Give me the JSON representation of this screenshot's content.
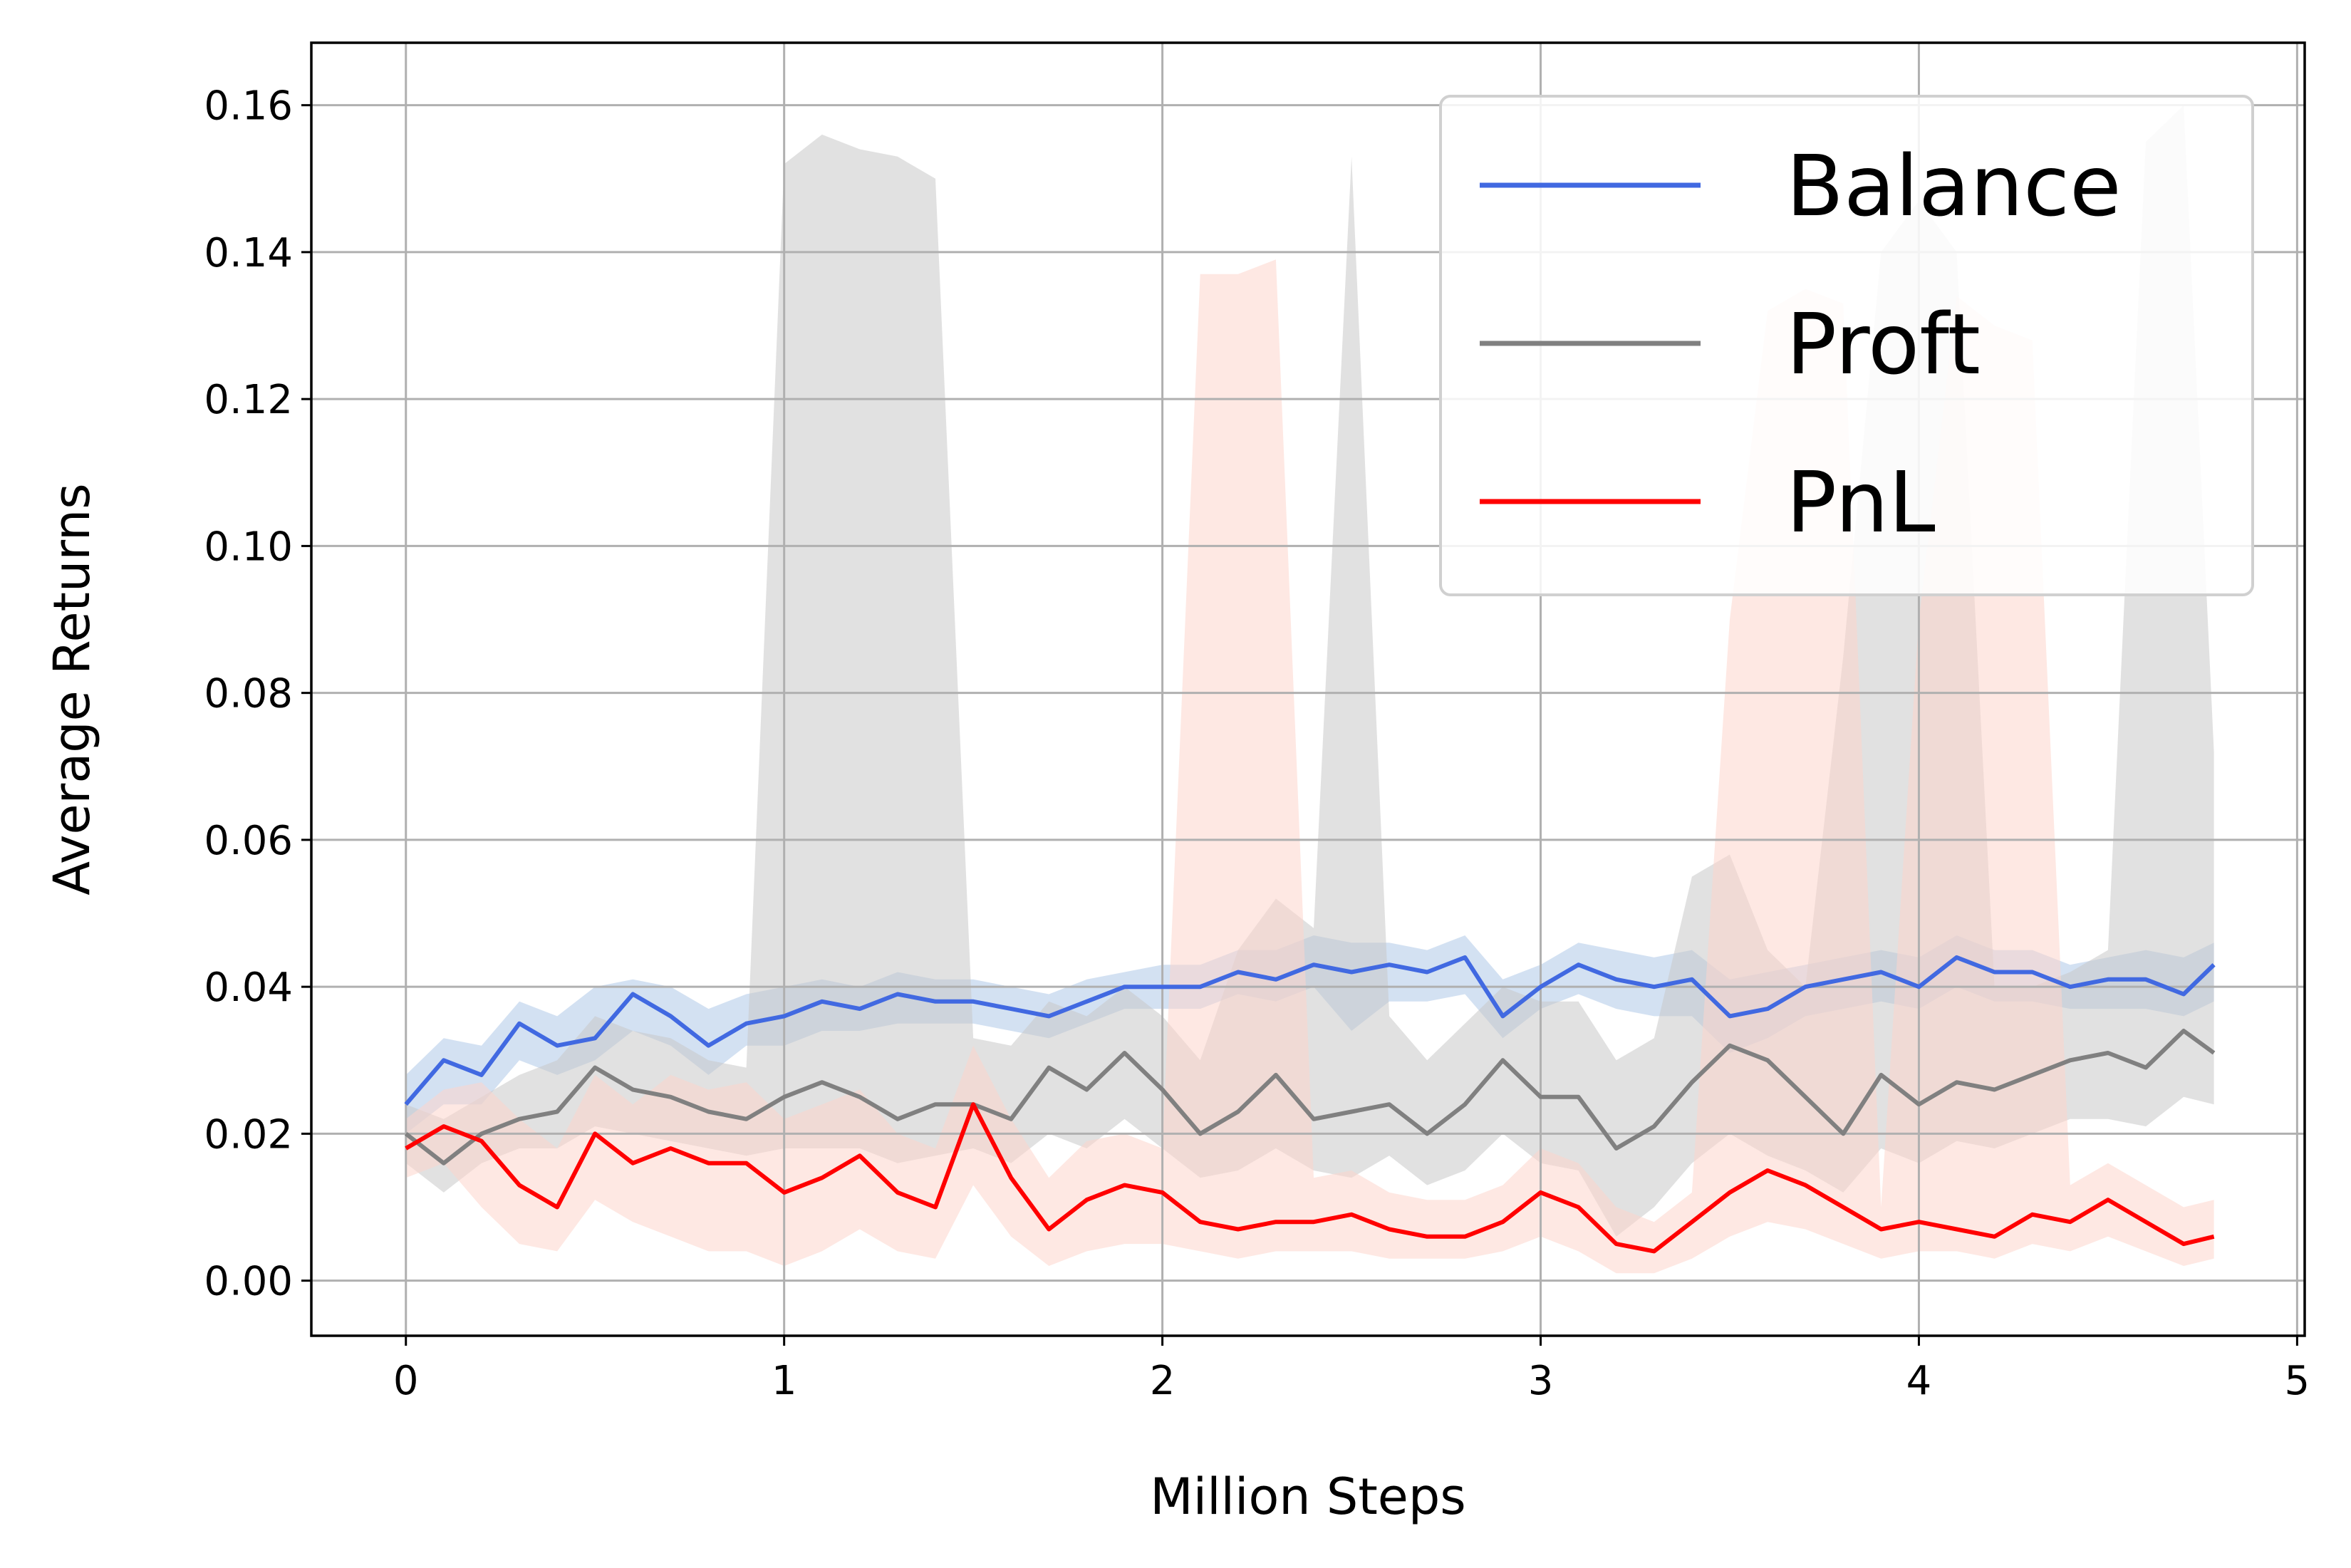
{
  "chart_data": {
    "type": "line",
    "xlabel": "Million Steps",
    "ylabel": "Average Returns",
    "xlim": [
      -0.25,
      5.02
    ],
    "ylim": [
      -0.0075,
      0.1685
    ],
    "xticks": [
      0,
      1,
      2,
      3,
      4,
      5
    ],
    "xtick_labels": [
      "0",
      "1",
      "2",
      "3",
      "4",
      "5"
    ],
    "yticks": [
      0.0,
      0.02,
      0.04,
      0.06,
      0.08,
      0.1,
      0.12,
      0.14,
      0.16
    ],
    "ytick_labels": [
      "0.00",
      "0.02",
      "0.04",
      "0.06",
      "0.08",
      "0.10",
      "0.12",
      "0.14",
      "0.16"
    ],
    "grid": true,
    "legend_position": "top-right",
    "series": [
      {
        "name": "Balance",
        "color": "#4169e1",
        "band_color": "#aec9e8",
        "x": [
          0.0,
          0.1,
          0.2,
          0.3,
          0.4,
          0.5,
          0.6,
          0.7,
          0.8,
          0.9,
          1.0,
          1.1,
          1.2,
          1.3,
          1.4,
          1.5,
          1.6,
          1.7,
          1.8,
          1.9,
          2.0,
          2.1,
          2.2,
          2.3,
          2.4,
          2.5,
          2.6,
          2.7,
          2.8,
          2.9,
          3.0,
          3.1,
          3.2,
          3.3,
          3.4,
          3.5,
          3.6,
          3.7,
          3.8,
          3.9,
          4.0,
          4.1,
          4.2,
          4.3,
          4.4,
          4.5,
          4.6,
          4.7,
          4.78
        ],
        "y": [
          0.024,
          0.03,
          0.028,
          0.035,
          0.032,
          0.033,
          0.039,
          0.036,
          0.032,
          0.035,
          0.036,
          0.038,
          0.037,
          0.039,
          0.038,
          0.038,
          0.037,
          0.036,
          0.038,
          0.04,
          0.04,
          0.04,
          0.042,
          0.041,
          0.043,
          0.042,
          0.043,
          0.042,
          0.044,
          0.036,
          0.04,
          0.043,
          0.041,
          0.04,
          0.041,
          0.036,
          0.037,
          0.04,
          0.041,
          0.042,
          0.04,
          0.044,
          0.042,
          0.042,
          0.04,
          0.041,
          0.041,
          0.039,
          0.043
        ],
        "lower": [
          0.02,
          0.024,
          0.024,
          0.03,
          0.028,
          0.03,
          0.034,
          0.032,
          0.028,
          0.032,
          0.032,
          0.034,
          0.034,
          0.035,
          0.035,
          0.035,
          0.034,
          0.033,
          0.035,
          0.037,
          0.037,
          0.037,
          0.039,
          0.038,
          0.04,
          0.034,
          0.038,
          0.038,
          0.039,
          0.033,
          0.037,
          0.039,
          0.037,
          0.036,
          0.036,
          0.031,
          0.033,
          0.036,
          0.037,
          0.038,
          0.037,
          0.04,
          0.038,
          0.038,
          0.037,
          0.037,
          0.037,
          0.036,
          0.038
        ],
        "upper": [
          0.028,
          0.033,
          0.032,
          0.038,
          0.036,
          0.04,
          0.041,
          0.04,
          0.037,
          0.039,
          0.04,
          0.041,
          0.04,
          0.042,
          0.041,
          0.041,
          0.04,
          0.039,
          0.041,
          0.042,
          0.043,
          0.043,
          0.045,
          0.045,
          0.047,
          0.046,
          0.046,
          0.045,
          0.047,
          0.041,
          0.043,
          0.046,
          0.045,
          0.044,
          0.045,
          0.041,
          0.042,
          0.043,
          0.044,
          0.045,
          0.044,
          0.047,
          0.045,
          0.045,
          0.043,
          0.044,
          0.045,
          0.044,
          0.046
        ]
      },
      {
        "name": "Proft",
        "color": "#808080",
        "band_color": "#c8c8c8",
        "x": [
          0.0,
          0.1,
          0.2,
          0.3,
          0.4,
          0.5,
          0.6,
          0.7,
          0.8,
          0.9,
          1.0,
          1.1,
          1.2,
          1.3,
          1.4,
          1.5,
          1.6,
          1.7,
          1.8,
          1.9,
          2.0,
          2.1,
          2.2,
          2.3,
          2.4,
          2.5,
          2.6,
          2.7,
          2.8,
          2.9,
          3.0,
          3.1,
          3.2,
          3.3,
          3.4,
          3.5,
          3.6,
          3.7,
          3.8,
          3.9,
          4.0,
          4.1,
          4.2,
          4.3,
          4.4,
          4.5,
          4.6,
          4.7,
          4.78
        ],
        "y": [
          0.02,
          0.016,
          0.02,
          0.022,
          0.023,
          0.029,
          0.026,
          0.025,
          0.023,
          0.022,
          0.025,
          0.027,
          0.025,
          0.022,
          0.024,
          0.024,
          0.022,
          0.029,
          0.026,
          0.031,
          0.026,
          0.02,
          0.023,
          0.028,
          0.022,
          0.023,
          0.024,
          0.02,
          0.024,
          0.03,
          0.025,
          0.025,
          0.018,
          0.021,
          0.027,
          0.032,
          0.03,
          0.025,
          0.02,
          0.028,
          0.024,
          0.027,
          0.026,
          0.028,
          0.03,
          0.031,
          0.029,
          0.034,
          0.031
        ],
        "lower": [
          0.016,
          0.012,
          0.016,
          0.018,
          0.018,
          0.021,
          0.02,
          0.019,
          0.018,
          0.017,
          0.018,
          0.018,
          0.018,
          0.016,
          0.017,
          0.018,
          0.016,
          0.02,
          0.018,
          0.022,
          0.018,
          0.014,
          0.015,
          0.018,
          0.015,
          0.014,
          0.017,
          0.013,
          0.015,
          0.02,
          0.016,
          0.015,
          0.006,
          0.01,
          0.016,
          0.02,
          0.017,
          0.015,
          0.012,
          0.018,
          0.016,
          0.019,
          0.018,
          0.02,
          0.022,
          0.022,
          0.021,
          0.025,
          0.024
        ],
        "upper": [
          0.024,
          0.022,
          0.025,
          0.028,
          0.03,
          0.036,
          0.034,
          0.033,
          0.03,
          0.029,
          0.152,
          0.156,
          0.154,
          0.153,
          0.15,
          0.033,
          0.032,
          0.038,
          0.036,
          0.04,
          0.036,
          0.03,
          0.045,
          0.052,
          0.048,
          0.153,
          0.036,
          0.03,
          0.035,
          0.04,
          0.038,
          0.038,
          0.03,
          0.033,
          0.055,
          0.058,
          0.045,
          0.04,
          0.085,
          0.14,
          0.147,
          0.14,
          0.04,
          0.04,
          0.042,
          0.045,
          0.155,
          0.16,
          0.072
        ]
      },
      {
        "name": "PnL",
        "color": "#ff0000",
        "band_color": "#fdd5cc",
        "x": [
          0.0,
          0.1,
          0.2,
          0.3,
          0.4,
          0.5,
          0.6,
          0.7,
          0.8,
          0.9,
          1.0,
          1.1,
          1.2,
          1.3,
          1.4,
          1.5,
          1.6,
          1.7,
          1.8,
          1.9,
          2.0,
          2.1,
          2.2,
          2.3,
          2.4,
          2.5,
          2.6,
          2.7,
          2.8,
          2.9,
          3.0,
          3.1,
          3.2,
          3.3,
          3.4,
          3.5,
          3.6,
          3.7,
          3.8,
          3.9,
          4.0,
          4.1,
          4.2,
          4.3,
          4.4,
          4.5,
          4.6,
          4.7,
          4.78
        ],
        "y": [
          0.018,
          0.021,
          0.019,
          0.013,
          0.01,
          0.02,
          0.016,
          0.018,
          0.016,
          0.016,
          0.012,
          0.014,
          0.017,
          0.012,
          0.01,
          0.024,
          0.014,
          0.007,
          0.011,
          0.013,
          0.012,
          0.008,
          0.007,
          0.008,
          0.008,
          0.009,
          0.007,
          0.006,
          0.006,
          0.008,
          0.012,
          0.01,
          0.005,
          0.004,
          0.008,
          0.012,
          0.015,
          0.013,
          0.01,
          0.007,
          0.008,
          0.007,
          0.006,
          0.009,
          0.008,
          0.011,
          0.008,
          0.005,
          0.006
        ],
        "lower": [
          0.014,
          0.016,
          0.01,
          0.005,
          0.004,
          0.011,
          0.008,
          0.006,
          0.004,
          0.004,
          0.002,
          0.004,
          0.007,
          0.004,
          0.003,
          0.013,
          0.006,
          0.002,
          0.004,
          0.005,
          0.005,
          0.004,
          0.003,
          0.004,
          0.004,
          0.004,
          0.003,
          0.003,
          0.003,
          0.004,
          0.006,
          0.004,
          0.001,
          0.001,
          0.003,
          0.006,
          0.008,
          0.007,
          0.005,
          0.003,
          0.004,
          0.004,
          0.003,
          0.005,
          0.004,
          0.006,
          0.004,
          0.002,
          0.003
        ],
        "upper": [
          0.022,
          0.026,
          0.027,
          0.022,
          0.018,
          0.028,
          0.024,
          0.028,
          0.026,
          0.027,
          0.022,
          0.024,
          0.026,
          0.02,
          0.018,
          0.032,
          0.022,
          0.014,
          0.019,
          0.02,
          0.018,
          0.137,
          0.137,
          0.139,
          0.014,
          0.015,
          0.012,
          0.011,
          0.011,
          0.013,
          0.018,
          0.016,
          0.01,
          0.008,
          0.012,
          0.09,
          0.132,
          0.135,
          0.133,
          0.01,
          0.09,
          0.134,
          0.13,
          0.128,
          0.013,
          0.016,
          0.013,
          0.01,
          0.011
        ]
      }
    ]
  }
}
